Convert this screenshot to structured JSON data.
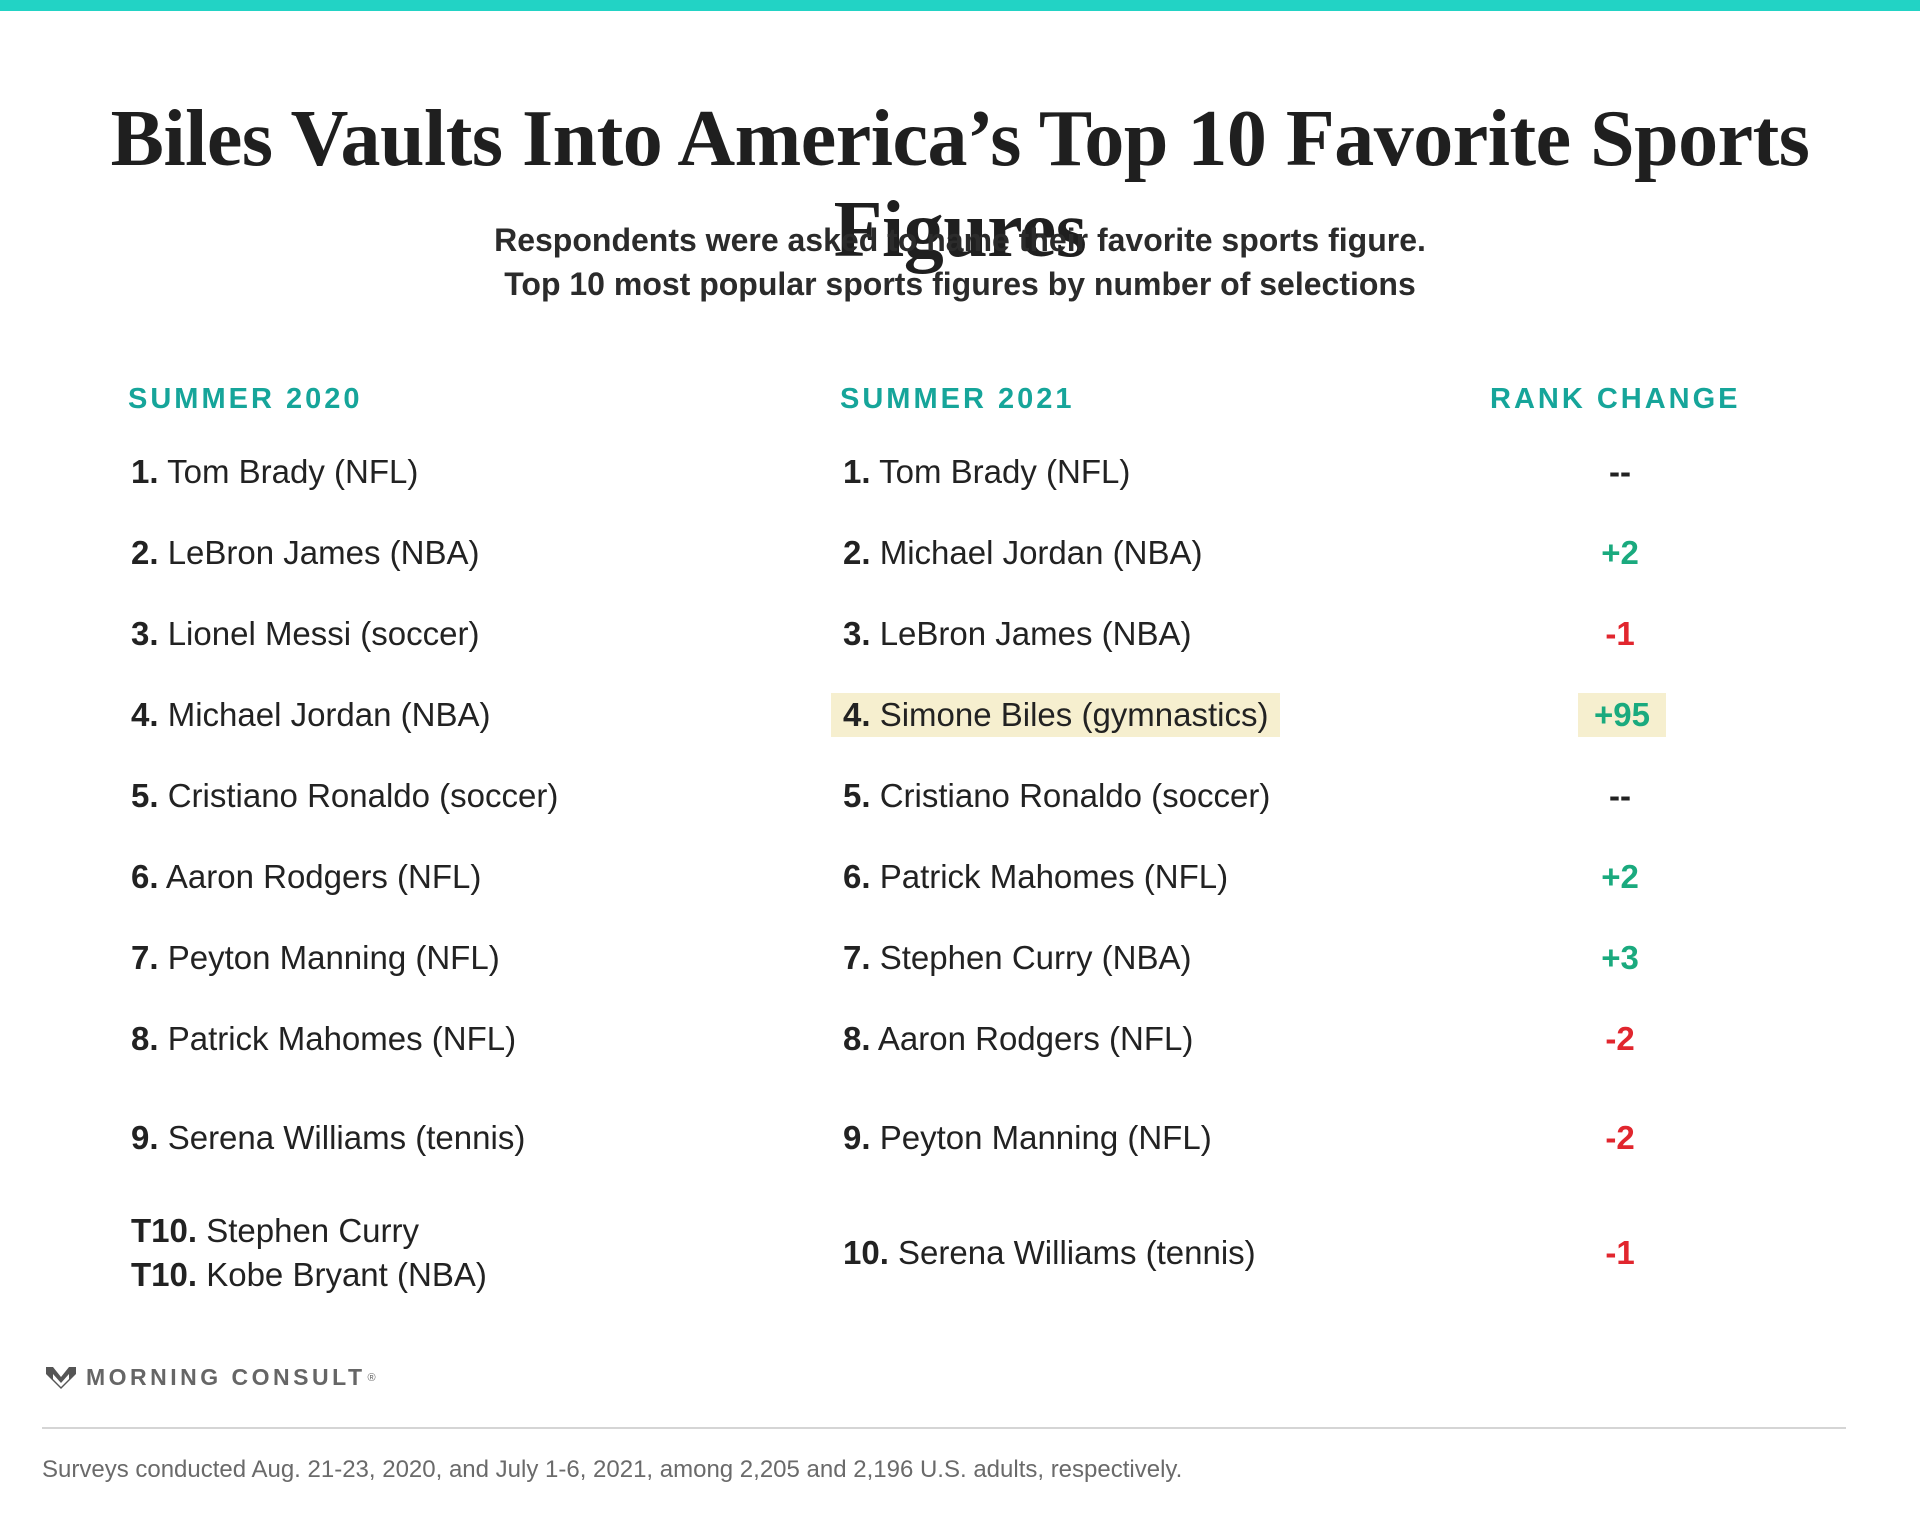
{
  "colors": {
    "accent": "#1abc9c",
    "header": "#16a59a",
    "positive": "#1aaa7e",
    "negative": "#e1262e",
    "neutral": "#222222",
    "highlight": "#f6efcf"
  },
  "header": {
    "title": "Biles Vaults Into America’s Top 10 Favorite Sports Figures",
    "subtitle_line1": "Respondents were asked to name their favorite sports figure.",
    "subtitle_line2": "Top 10 most popular sports figures by number of selections"
  },
  "chart_data": {
    "type": "table",
    "columns": [
      "SUMMER 2020",
      "SUMMER 2021",
      "RANK CHANGE"
    ],
    "summer_2020": [
      {
        "rank": "1.",
        "name": "Tom Brady (NFL)"
      },
      {
        "rank": "2.",
        "name": "LeBron James (NBA)"
      },
      {
        "rank": "3.",
        "name": "Lionel Messi (soccer)"
      },
      {
        "rank": "4.",
        "name": "Michael Jordan (NBA)"
      },
      {
        "rank": "5.",
        "name": "Cristiano Ronaldo (soccer)"
      },
      {
        "rank": "6.",
        "name": "Aaron Rodgers (NFL)"
      },
      {
        "rank": "7.",
        "name": "Peyton Manning (NFL)"
      },
      {
        "rank": "8.",
        "name": "Patrick Mahomes (NFL)"
      },
      {
        "rank": "9.",
        "name": "Serena Williams (tennis)"
      },
      {
        "rank": "T10.",
        "name": "Stephen Curry"
      },
      {
        "rank": "T10.",
        "name": "Kobe Bryant (NBA)"
      }
    ],
    "summer_2021": [
      {
        "rank": "1.",
        "name": "Tom Brady (NFL)",
        "change": "--",
        "highlight": false
      },
      {
        "rank": "2.",
        "name": "Michael Jordan (NBA)",
        "change": "+2",
        "highlight": false
      },
      {
        "rank": "3.",
        "name": "LeBron James (NBA)",
        "change": "-1",
        "highlight": false
      },
      {
        "rank": "4.",
        "name": "Simone Biles (gymnastics)",
        "change": "+95",
        "highlight": true
      },
      {
        "rank": "5.",
        "name": "Cristiano Ronaldo (soccer)",
        "change": "--",
        "highlight": false
      },
      {
        "rank": "6.",
        "name": "Patrick Mahomes (NFL)",
        "change": "+2",
        "highlight": false
      },
      {
        "rank": "7.",
        "name": "Stephen Curry (NBA)",
        "change": "+3",
        "highlight": false
      },
      {
        "rank": "8.",
        "name": "Aaron Rodgers (NFL)",
        "change": "-2",
        "highlight": false
      },
      {
        "rank": "9.",
        "name": "Peyton Manning (NFL)",
        "change": "-2",
        "highlight": false
      },
      {
        "rank": "10.",
        "name": "Serena Williams (tennis)",
        "change": "-1",
        "highlight": false
      }
    ]
  },
  "footer": {
    "logo_text": "MORNING CONSULT",
    "logo_mark": "®",
    "logo_icon": "morning-consult-m-icon",
    "note": "Surveys conducted Aug. 21-23, 2020, and July 1-6, 2021, among 2,205 and 2,196 U.S. adults, respectively."
  }
}
